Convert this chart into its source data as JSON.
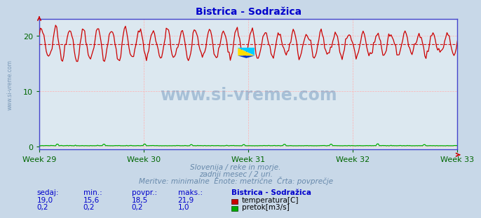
{
  "title": "Bistrica - Sodražica",
  "title_color": "#0000cc",
  "bg_color": "#c8d8e8",
  "plot_bg_color": "#dce8f0",
  "grid_color": "#ffb0b0",
  "x_labels": [
    "Week 29",
    "Week 30",
    "Week 31",
    "Week 32",
    "Week 33"
  ],
  "x_label_color": "#006600",
  "y_ticks": [
    0,
    10,
    20
  ],
  "y_label_color": "#006600",
  "ylim": [
    -0.5,
    23
  ],
  "xlim": [
    0,
    359
  ],
  "temp_avg": 18.5,
  "temp_min": 15.6,
  "temp_max": 21.9,
  "temp_current": 19.0,
  "flow_avg": 0.2,
  "flow_min": 0.2,
  "flow_max": 1.0,
  "flow_current": 0.2,
  "temp_line_color": "#cc0000",
  "temp_avg_line_color": "#cc0000",
  "flow_line_color": "#00aa00",
  "watermark_text_color": "#4477aa",
  "watermark_alpha": 0.35,
  "subtitle_lines": [
    "Slovenija / reke in morje.",
    "zadnji mesec / 2 uri.",
    "Meritve: minimalne  Enote: metrične  Črta: povprečje"
  ],
  "subtitle_color": "#6688aa",
  "table_header": [
    "sedaj:",
    "min.:",
    "povpr.:",
    "maks.:",
    "Bistrica - Sodražica"
  ],
  "table_row1": [
    "19,0",
    "15,6",
    "18,5",
    "21,9"
  ],
  "table_row2": [
    "0,2",
    "0,2",
    "0,2",
    "1,0"
  ],
  "table_color": "#0000cc",
  "label_temp": "temperatura[C]",
  "label_flow": "pretok[m3/s]",
  "legend_temp_color": "#cc0000",
  "legend_flow_color": "#00aa00",
  "num_points": 360,
  "spine_color": "#4444cc",
  "axis_arrow_color": "#cc0000"
}
